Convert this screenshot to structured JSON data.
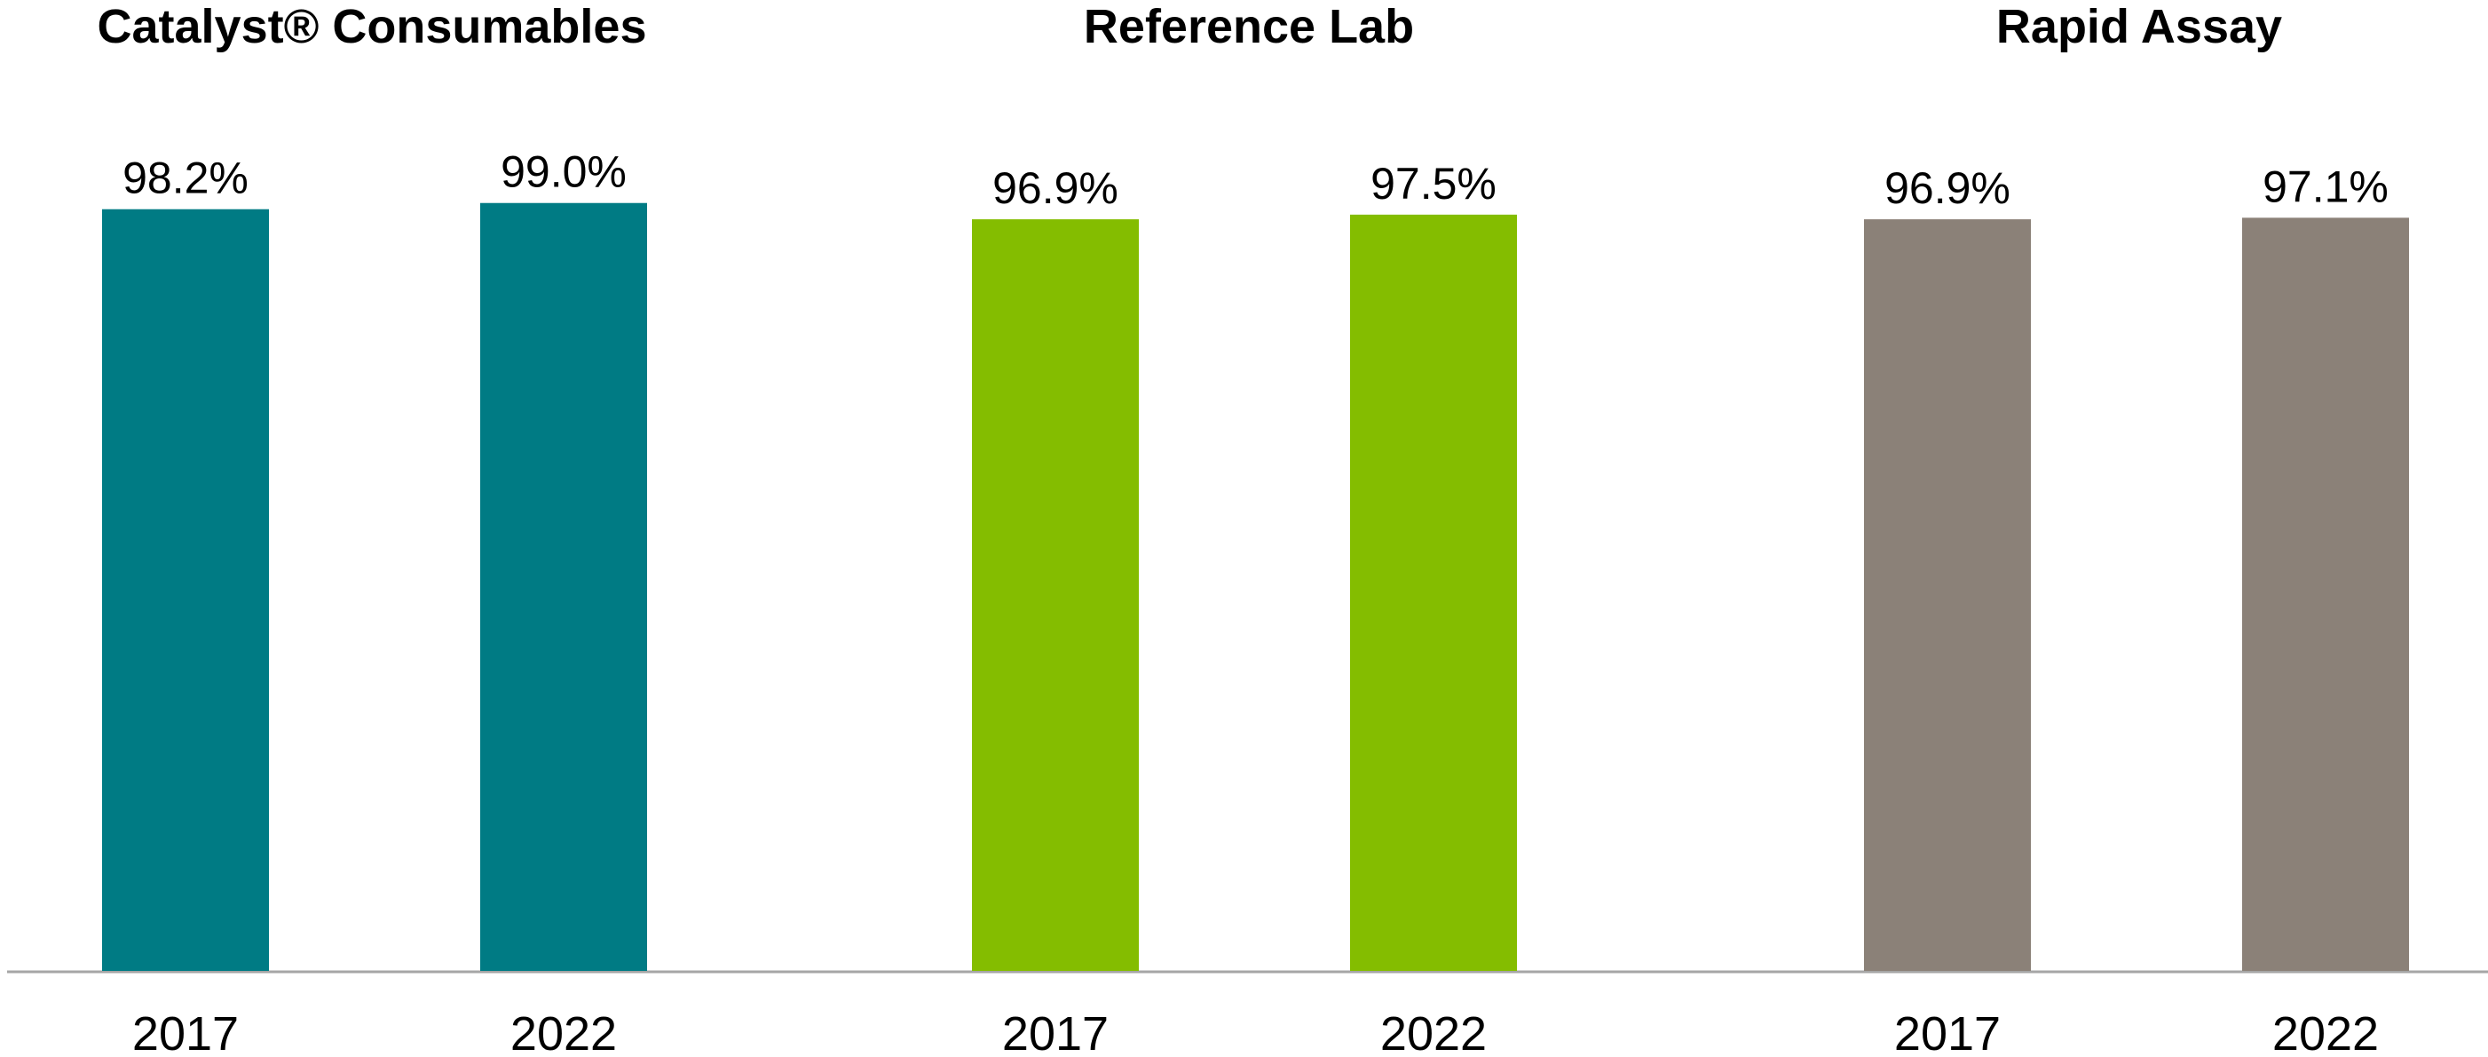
{
  "chart_data": [
    {
      "type": "bar",
      "title": "Catalyst® Consumables",
      "categories": [
        "2017",
        "2022"
      ],
      "values": [
        98.2,
        99.0
      ],
      "value_labels": [
        "98.2%",
        "99.0%"
      ],
      "color": "#007b84",
      "ylim": [
        0,
        100
      ]
    },
    {
      "type": "bar",
      "title": "Reference Lab",
      "categories": [
        "2017",
        "2022"
      ],
      "values": [
        96.9,
        97.5
      ],
      "value_labels": [
        "96.9%",
        "97.5%"
      ],
      "color": "#84bd00",
      "ylim": [
        0,
        100
      ]
    },
    {
      "type": "bar",
      "title": "Rapid Assay",
      "categories": [
        "2017",
        "2022"
      ],
      "values": [
        96.9,
        97.1
      ],
      "value_labels": [
        "96.9%",
        "97.1%"
      ],
      "color": "#8b8178",
      "ylim": [
        0,
        100
      ]
    }
  ]
}
